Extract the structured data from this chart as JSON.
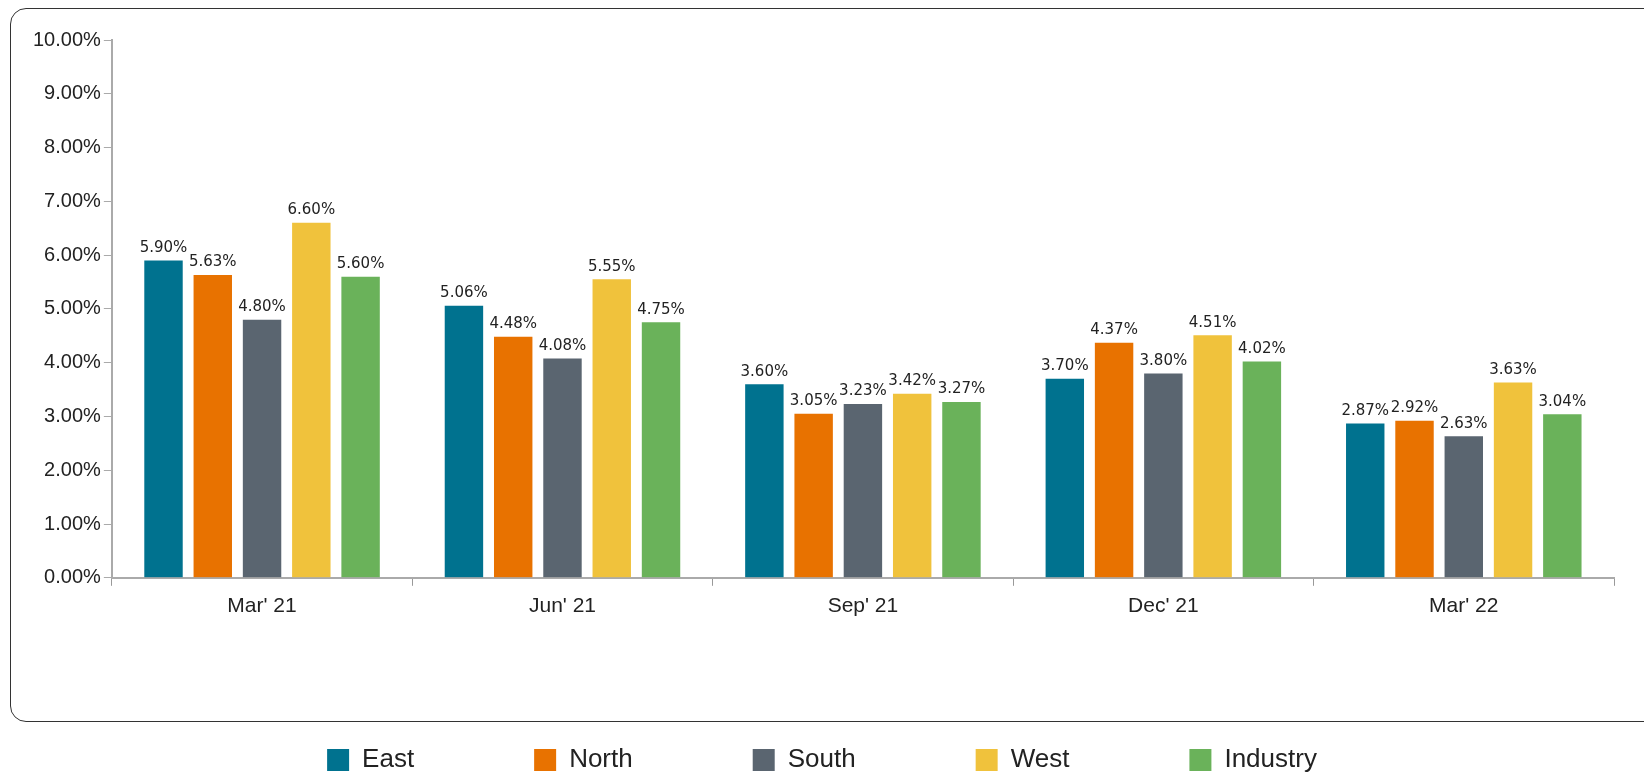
{
  "chart_data": {
    "type": "bar",
    "categories": [
      "Mar' 21",
      "Jun' 21",
      "Sep' 21",
      "Dec' 21",
      "Mar' 22"
    ],
    "series": [
      {
        "name": "East",
        "color": "#00728f",
        "values": [
          5.9,
          5.06,
          3.6,
          3.7,
          2.87
        ],
        "value_labels": [
          "5.90%",
          "5.06%",
          "3.60%",
          "3.70%",
          "2.87%"
        ]
      },
      {
        "name": "North",
        "color": "#e87200",
        "values": [
          5.63,
          4.48,
          3.05,
          4.37,
          2.92
        ],
        "value_labels": [
          "5.63%",
          "4.48%",
          "3.05%",
          "4.37%",
          "2.92%"
        ]
      },
      {
        "name": "South",
        "color": "#5a6570",
        "values": [
          4.8,
          4.08,
          3.23,
          3.8,
          2.63
        ],
        "value_labels": [
          "4.80%",
          "4.08%",
          "3.23%",
          "3.80%",
          "2.63%"
        ]
      },
      {
        "name": "West",
        "color": "#f0c23c",
        "values": [
          6.6,
          5.55,
          3.42,
          4.51,
          3.63
        ],
        "value_labels": [
          "6.60%",
          "5.55%",
          "3.42%",
          "4.51%",
          "3.63%"
        ]
      },
      {
        "name": "Industry",
        "color": "#6ab25a",
        "values": [
          5.6,
          4.75,
          3.27,
          4.02,
          3.04
        ],
        "value_labels": [
          "5.60%",
          "4.75%",
          "3.27%",
          "4.02%",
          "3.04%"
        ]
      }
    ],
    "ylim": [
      0,
      10
    ],
    "yticks": [
      {
        "value": 0,
        "label": "0.00%"
      },
      {
        "value": 1,
        "label": "1.00%"
      },
      {
        "value": 2,
        "label": "2.00%"
      },
      {
        "value": 3,
        "label": "3.00%"
      },
      {
        "value": 4,
        "label": "4.00%"
      },
      {
        "value": 5,
        "label": "5.00%"
      },
      {
        "value": 6,
        "label": "6.00%"
      },
      {
        "value": 7,
        "label": "7.00%"
      },
      {
        "value": 8,
        "label": "8.00%"
      },
      {
        "value": 9,
        "label": "9.00%"
      },
      {
        "value": 10,
        "label": "10.00%"
      }
    ],
    "grid": false,
    "legend": "bottom"
  }
}
